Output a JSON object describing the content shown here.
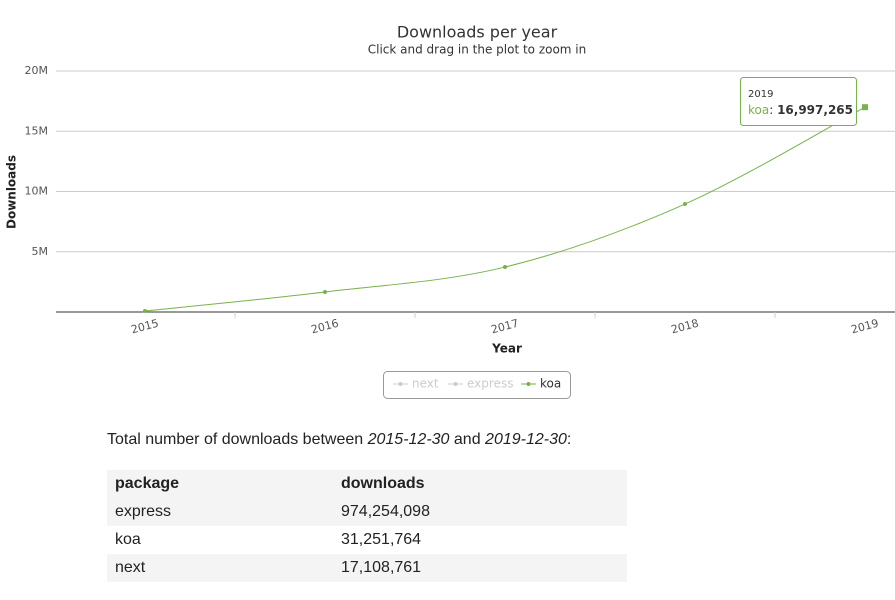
{
  "chart_data": {
    "type": "line",
    "title": "Downloads per year",
    "subtitle": "Click and drag in the plot to zoom in",
    "x_label": "Year",
    "y_label": "Downloads",
    "categories": [
      "2015",
      "2016",
      "2017",
      "2018",
      "2019"
    ],
    "series": [
      {
        "name": "next",
        "color": "#cccccc",
        "visible": false,
        "values": [
          null,
          null,
          null,
          null,
          null
        ]
      },
      {
        "name": "express",
        "color": "#cccccc",
        "visible": false,
        "values": [
          null,
          null,
          null,
          null,
          null
        ]
      },
      {
        "name": "koa",
        "color": "#78b24a",
        "visible": true,
        "values": [
          80000,
          1660000,
          3730000,
          8960000,
          16997265
        ],
        "value_labels": [
          null,
          null,
          null,
          null,
          "16,997,265"
        ]
      }
    ],
    "ylim": [
      0,
      20000000
    ],
    "yticks": [
      {
        "value": 5000000,
        "label": "5M"
      },
      {
        "value": 10000000,
        "label": "10M"
      },
      {
        "value": 15000000,
        "label": "15M"
      },
      {
        "value": 20000000,
        "label": "20M"
      }
    ],
    "grid": true
  },
  "summary": {
    "parts": [
      "Total number of downloads between ",
      "2015-12-30",
      " and ",
      "2019-12-30",
      ":"
    ]
  },
  "table": {
    "header": [
      "package",
      "downloads"
    ],
    "rows": [
      [
        "express",
        "974,254,098"
      ],
      [
        "koa",
        "31,251,764"
      ],
      [
        "next",
        "17,108,761"
      ]
    ]
  }
}
